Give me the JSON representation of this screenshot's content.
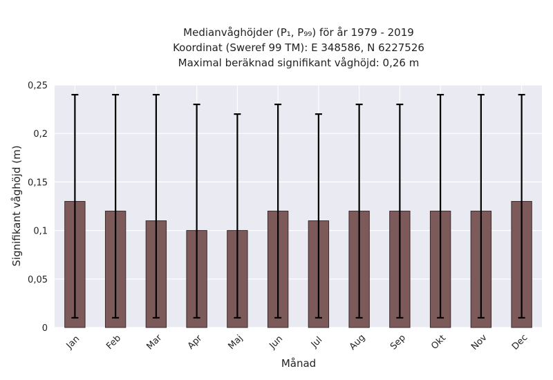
{
  "chart_data": {
    "type": "bar",
    "title_lines": [
      "Medianvåghöjder (P₁, P₉₉) för år 1979 - 2019",
      "Koordinat (Sweref 99 TM): E 348586, N 6227526",
      "Maximal beräknad signifikant våghöjd: 0,26 m"
    ],
    "xlabel": "Månad",
    "ylabel": "Signifikant våghöjd (m)",
    "categories": [
      "Jan",
      "Feb",
      "Mar",
      "Apr",
      "Maj",
      "Jun",
      "Jul",
      "Aug",
      "Sep",
      "Okt",
      "Nov",
      "Dec"
    ],
    "values": [
      0.13,
      0.12,
      0.11,
      0.1,
      0.1,
      0.12,
      0.11,
      0.12,
      0.12,
      0.12,
      0.12,
      0.13
    ],
    "err_low": [
      0.01,
      0.01,
      0.01,
      0.01,
      0.01,
      0.01,
      0.01,
      0.01,
      0.01,
      0.01,
      0.01,
      0.01
    ],
    "err_high": [
      0.24,
      0.24,
      0.24,
      0.23,
      0.22,
      0.23,
      0.22,
      0.23,
      0.23,
      0.24,
      0.24,
      0.24
    ],
    "ylim": [
      0,
      0.25
    ],
    "yticks": [
      0,
      0.05,
      0.1,
      0.15,
      0.2,
      0.25
    ],
    "ytick_labels": [
      "0",
      "0,05",
      "0,1",
      "0,15",
      "0,2",
      "0,25"
    ],
    "grid": true,
    "colors": {
      "bar": "#7d5a5a",
      "bar_edge": "#3a2a2a",
      "errorbar": "#000000",
      "plot_background": "#eaeaf2",
      "grid": "#ffffff"
    }
  }
}
